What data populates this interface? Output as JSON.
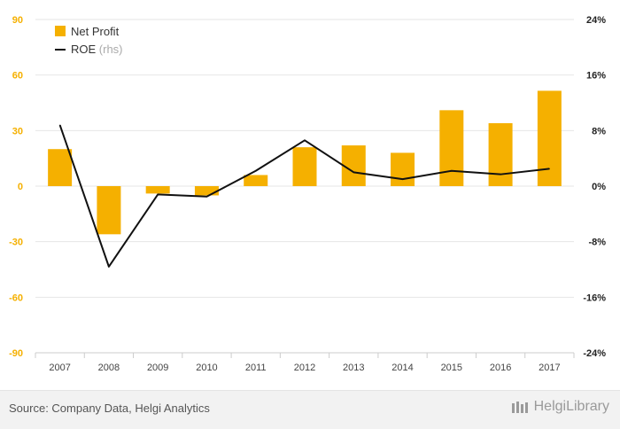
{
  "chart_data": {
    "type": "bar",
    "categories": [
      "2007",
      "2008",
      "2009",
      "2010",
      "2011",
      "2012",
      "2013",
      "2014",
      "2015",
      "2016",
      "2017"
    ],
    "series": [
      {
        "name": "Net Profit",
        "type": "bar",
        "axis": "left",
        "color": "#f5b000",
        "values": [
          20,
          -26,
          -4,
          -5,
          6,
          21,
          22,
          18,
          41,
          34,
          51.5
        ]
      },
      {
        "name": "ROE",
        "type": "line",
        "axis": "right",
        "color": "#111111",
        "values": [
          8.8,
          -11.6,
          -1.2,
          -1.5,
          2.2,
          6.6,
          2.0,
          1.0,
          2.2,
          1.7,
          2.5
        ]
      }
    ],
    "legend": [
      {
        "label": "Net Profit",
        "suffix": ""
      },
      {
        "label": "ROE",
        "suffix": "(rhs)"
      }
    ],
    "left_axis": {
      "ylim": [
        -90,
        90
      ],
      "ticks": [
        "90",
        "60",
        "30",
        "0",
        "-30",
        "-60",
        "-90"
      ],
      "color": "#f5b000"
    },
    "right_axis": {
      "ylim": [
        -24,
        24
      ],
      "ticks": [
        "24%",
        "16%",
        "8%",
        "0%",
        "-8%",
        "-16%",
        "-24%"
      ]
    },
    "legend_position": "top-left",
    "grid": true
  },
  "footer": {
    "source": "Source: Company Data, Helgi Analytics",
    "brand": "HelgiLibrary"
  }
}
